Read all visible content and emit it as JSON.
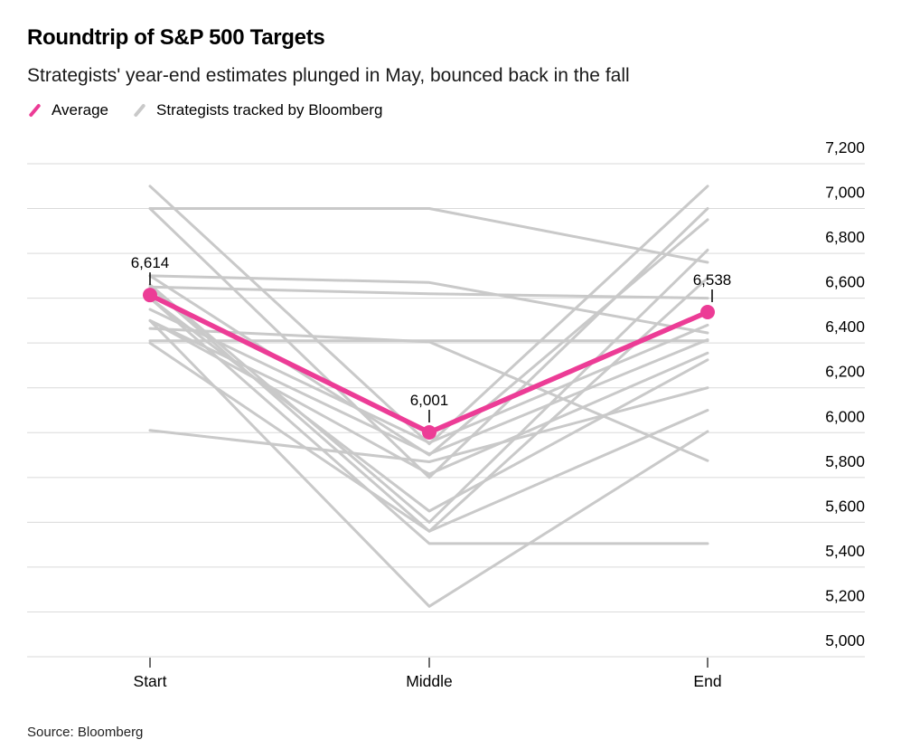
{
  "header": {
    "title": "Roundtrip of S&P 500 Targets",
    "subtitle": "Strategists' year-end estimates plunged in May, bounced back in the fall"
  },
  "legend": {
    "items": [
      {
        "label": "Average",
        "color": "#EC3C96"
      },
      {
        "label": "Strategists tracked by Bloomberg",
        "color": "#C9C9C9"
      }
    ]
  },
  "source_note": "Source: Bloomberg",
  "chart_data": {
    "type": "line",
    "title": "Roundtrip of S&P 500 Targets",
    "subtitle": "Strategists' year-end estimates plunged in May, bounced back in the fall",
    "categories": [
      "Start",
      "Middle",
      "End"
    ],
    "ylim": [
      5000,
      7200
    ],
    "ytick_step": 200,
    "ytick_labels": [
      "7,200",
      "7,000",
      "6,800",
      "6,600",
      "6,400",
      "6,200",
      "6,000",
      "5,800",
      "5,600",
      "5,400",
      "5,200",
      "5,000"
    ],
    "grid": true,
    "legend_position": "top-left",
    "colors": {
      "average": "#EC3C96",
      "strategists": "#C9C9C9",
      "grid": "#DADADA",
      "text": "#000000",
      "tick": "#3d3d3d"
    },
    "average_series": {
      "name": "Average",
      "values": [
        6614,
        6001,
        6538
      ],
      "point_labels": [
        "6,614",
        "6,001",
        "6,538"
      ]
    },
    "strategist_series": {
      "name": "Strategists tracked by Bloomberg",
      "lines": [
        [
          7100,
          5950,
          7100
        ],
        [
          7000,
          7000,
          6760
        ],
        [
          7000,
          5800,
          7000
        ],
        [
          6700,
          5900,
          6950
        ],
        [
          6700,
          6670,
          6445
        ],
        [
          6660,
          5600,
          6815
        ],
        [
          6650,
          6620,
          6600
        ],
        [
          6650,
          5560,
          6690
        ],
        [
          6600,
          5505,
          5505
        ],
        [
          6600,
          5650,
          6325
        ],
        [
          6550,
          5955,
          6480
        ],
        [
          6500,
          5905,
          6415
        ],
        [
          6500,
          5815,
          6355
        ],
        [
          6500,
          5225,
          6005
        ],
        [
          6410,
          6410,
          6410
        ],
        [
          6465,
          6405,
          5875
        ],
        [
          6400,
          5560,
          6100
        ],
        [
          6010,
          5870,
          6200
        ]
      ]
    }
  }
}
